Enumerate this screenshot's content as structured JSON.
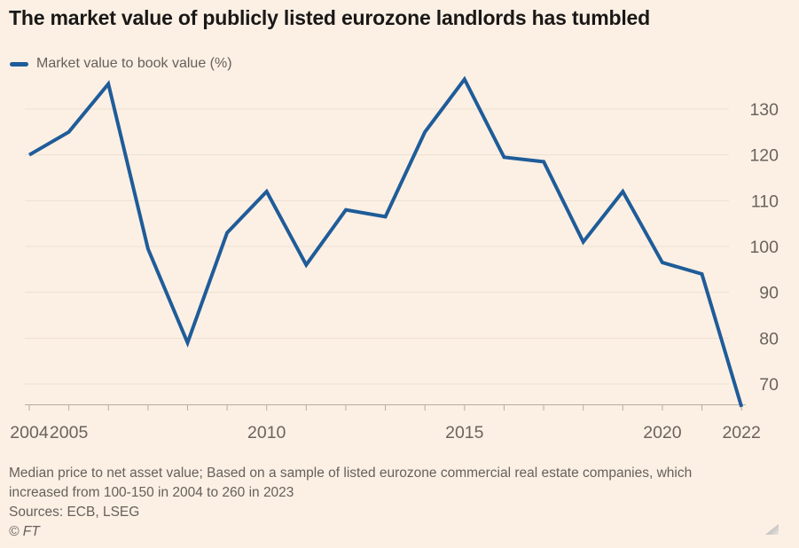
{
  "title": "The market value of publicly listed eurozone landlords has tumbled",
  "legend": {
    "label": "Market value to book value (%)"
  },
  "chart_data": {
    "type": "line",
    "title": "The market value of publicly listed eurozone landlords has tumbled",
    "series": [
      {
        "name": "Market value to book value (%)",
        "x": [
          2004,
          2005,
          2006,
          2007,
          2008,
          2009,
          2010,
          2011,
          2012,
          2013,
          2014,
          2015,
          2016,
          2017,
          2018,
          2019,
          2020,
          2021,
          2022
        ],
        "values": [
          120,
          125,
          135.5,
          99.5,
          79,
          103,
          112,
          96,
          108,
          106.5,
          125,
          136.5,
          119.5,
          118.5,
          101,
          112,
          96.5,
          94,
          65
        ]
      }
    ],
    "xlabel": "",
    "ylabel": "Market value to book value (%)",
    "ylim": [
      65,
      137
    ],
    "yticks": [
      70,
      80,
      90,
      100,
      110,
      120,
      130
    ],
    "xticks_labeled": [
      2004,
      2005,
      2010,
      2015,
      2020,
      2022
    ],
    "grid": "horizontal",
    "legend_position": "top-left"
  },
  "footnote": {
    "note": "Median price to net asset value; Based on a sample of listed eurozone commercial real estate companies, which increased from 100-150 in 2004 to 260 in 2023",
    "sources": "Sources: ECB, LSEG",
    "copyright": "© FT"
  },
  "colors": {
    "background": "#FCF0E4",
    "line": "#1F5C99",
    "grid": "#EDDFD2",
    "axis": "#B8AB9F",
    "axis_text": "#6B635D",
    "title_text": "#1A1817",
    "note_text": "#66605C"
  }
}
